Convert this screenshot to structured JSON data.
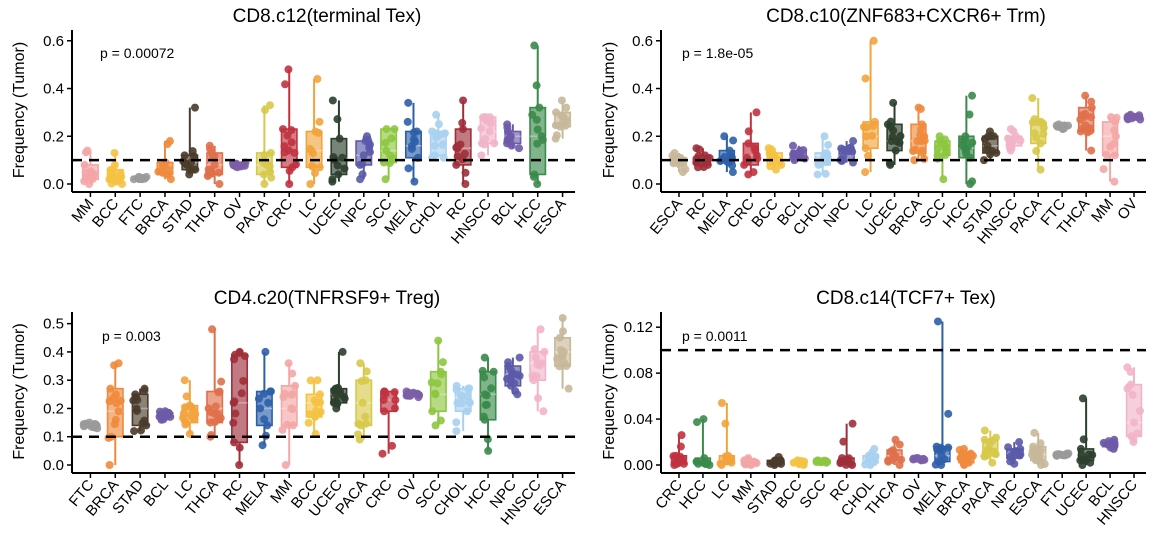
{
  "chart_data": [
    {
      "type": "box",
      "title": "CD8.c12(terminal Tex)",
      "ylabel": "Frequency (Tumor)",
      "ylim": [
        0,
        0.62
      ],
      "yticks": [
        "0.0",
        "0.2",
        "0.4",
        "0.6"
      ],
      "threshold": 0.1,
      "pvalue": "p = 0.00072",
      "categories": [
        "MM",
        "BCC",
        "FTC",
        "BRCA",
        "STAD",
        "THCA",
        "OV",
        "PACA",
        "CRC",
        "LC",
        "UCEC",
        "NPC",
        "SCC",
        "MELA",
        "CHOL",
        "RC",
        "HNSCC",
        "BCL",
        "HCC",
        "ESCA"
      ],
      "colors": [
        "#f4a6a6",
        "#f5c242",
        "#9a9a9a",
        "#ef8a3c",
        "#4a3b2a",
        "#e0704a",
        "#7b5ea7",
        "#d7c94a",
        "#c0323f",
        "#f2a33c",
        "#2c3e2c",
        "#5a5aa8",
        "#8dc63f",
        "#2d5fa8",
        "#a8d0ef",
        "#9e2f3a",
        "#f2b4c8",
        "#6d5aa8",
        "#3a8a4a",
        "#c8b89a"
      ],
      "values": [
        [
          0.0,
          0.02,
          0.04,
          0.08,
          0.14
        ],
        [
          0.0,
          0.01,
          0.03,
          0.06,
          0.13
        ],
        [
          0.02,
          0.02,
          0.025,
          0.03,
          0.03
        ],
        [
          0.02,
          0.04,
          0.06,
          0.09,
          0.18
        ],
        [
          0.04,
          0.06,
          0.09,
          0.12,
          0.32
        ],
        [
          0.0,
          0.04,
          0.08,
          0.13,
          0.16
        ],
        [
          0.07,
          0.075,
          0.08,
          0.085,
          0.09
        ],
        [
          0.0,
          0.04,
          0.08,
          0.13,
          0.33
        ],
        [
          0.0,
          0.07,
          0.13,
          0.23,
          0.48
        ],
        [
          0.0,
          0.07,
          0.14,
          0.22,
          0.44
        ],
        [
          0.01,
          0.04,
          0.11,
          0.19,
          0.35
        ],
        [
          0.02,
          0.08,
          0.12,
          0.18,
          0.2
        ],
        [
          0.02,
          0.09,
          0.14,
          0.23,
          0.23
        ],
        [
          0.01,
          0.11,
          0.16,
          0.22,
          0.34
        ],
        [
          0.11,
          0.12,
          0.16,
          0.22,
          0.29
        ],
        [
          0.0,
          0.08,
          0.15,
          0.23,
          0.35
        ],
        [
          0.12,
          0.17,
          0.22,
          0.28,
          0.28
        ],
        [
          0.15,
          0.17,
          0.2,
          0.22,
          0.25
        ],
        [
          0.0,
          0.04,
          0.2,
          0.32,
          0.58
        ],
        [
          0.19,
          0.24,
          0.26,
          0.3,
          0.35
        ]
      ]
    },
    {
      "type": "box",
      "title": "CD8.c10(ZNF683+CXCR6+ Trm)",
      "ylabel": "Frequency (Tumor)",
      "ylim": [
        0,
        0.62
      ],
      "yticks": [
        "0.0",
        "0.2",
        "0.4",
        "0.6"
      ],
      "threshold": 0.1,
      "pvalue": "p = 1.8e-05",
      "categories": [
        "ESCA",
        "RC",
        "MELA",
        "CRC",
        "BCC",
        "BCL",
        "CHOL",
        "NPC",
        "LC",
        "UCEC",
        "BRCA",
        "SCC",
        "HCC",
        "STAD",
        "HNSCC",
        "PACA",
        "FTC",
        "THCA",
        "MM",
        "OV"
      ],
      "colors": [
        "#c8b89a",
        "#9e2f3a",
        "#2d5fa8",
        "#c0323f",
        "#f5c242",
        "#6d5aa8",
        "#a8d0ef",
        "#5a5aa8",
        "#f2a33c",
        "#2c3e2c",
        "#ef8a3c",
        "#8dc63f",
        "#3a8a4a",
        "#4a3b2a",
        "#f2b4c8",
        "#d7c94a",
        "#9a9a9a",
        "#e0704a",
        "#f4a6a6",
        "#7b5ea7"
      ],
      "values": [
        [
          0.05,
          0.08,
          0.09,
          0.11,
          0.13
        ],
        [
          0.07,
          0.08,
          0.1,
          0.12,
          0.15
        ],
        [
          0.05,
          0.09,
          0.11,
          0.14,
          0.2
        ],
        [
          0.04,
          0.08,
          0.12,
          0.17,
          0.3
        ],
        [
          0.06,
          0.08,
          0.1,
          0.13,
          0.15
        ],
        [
          0.1,
          0.11,
          0.12,
          0.14,
          0.16
        ],
        [
          0.04,
          0.08,
          0.12,
          0.13,
          0.2
        ],
        [
          0.09,
          0.1,
          0.12,
          0.15,
          0.18
        ],
        [
          0.05,
          0.15,
          0.2,
          0.26,
          0.6
        ],
        [
          0.08,
          0.14,
          0.18,
          0.25,
          0.34
        ],
        [
          0.1,
          0.13,
          0.18,
          0.25,
          0.32
        ],
        [
          0.02,
          0.12,
          0.15,
          0.18,
          0.2
        ],
        [
          0.0,
          0.11,
          0.15,
          0.2,
          0.37
        ],
        [
          0.1,
          0.13,
          0.16,
          0.2,
          0.22
        ],
        [
          0.14,
          0.16,
          0.18,
          0.2,
          0.23
        ],
        [
          0.06,
          0.17,
          0.21,
          0.26,
          0.36
        ],
        [
          0.23,
          0.235,
          0.24,
          0.245,
          0.25
        ],
        [
          0.14,
          0.22,
          0.27,
          0.32,
          0.37
        ],
        [
          0.01,
          0.12,
          0.2,
          0.26,
          0.28
        ],
        [
          0.27,
          0.275,
          0.28,
          0.285,
          0.29
        ]
      ]
    },
    {
      "type": "box",
      "title": "CD4.c20(TNFRSF9+ Treg)",
      "ylabel": "Frequency (Tumor)",
      "ylim": [
        0,
        0.52
      ],
      "yticks": [
        "0.0",
        "0.1",
        "0.2",
        "0.3",
        "0.4",
        "0.5"
      ],
      "threshold": 0.1,
      "pvalue": "p = 0.003",
      "categories": [
        "FTC",
        "BRCA",
        "STAD",
        "BCL",
        "LC",
        "THCA",
        "RC",
        "MELA",
        "MM",
        "BCC",
        "UCEC",
        "PACA",
        "CRC",
        "OV",
        "SCC",
        "CHOL",
        "HCC",
        "NPC",
        "HNSCC",
        "ESCA"
      ],
      "colors": [
        "#9a9a9a",
        "#ef8a3c",
        "#4a3b2a",
        "#6d5aa8",
        "#f2a33c",
        "#e0704a",
        "#9e2f3a",
        "#2d5fa8",
        "#f4a6a6",
        "#f5c242",
        "#2c3e2c",
        "#d7c94a",
        "#c0323f",
        "#7b5ea7",
        "#8dc63f",
        "#a8d0ef",
        "#3a8a4a",
        "#5a5aa8",
        "#f2b4c8",
        "#c8b89a"
      ],
      "values": [
        [
          0.13,
          0.135,
          0.14,
          0.145,
          0.15
        ],
        [
          0.0,
          0.1,
          0.19,
          0.27,
          0.36
        ],
        [
          0.12,
          0.14,
          0.2,
          0.25,
          0.27
        ],
        [
          0.16,
          0.17,
          0.18,
          0.185,
          0.19
        ],
        [
          0.11,
          0.15,
          0.18,
          0.21,
          0.3
        ],
        [
          0.1,
          0.15,
          0.2,
          0.26,
          0.48
        ],
        [
          0.0,
          0.08,
          0.22,
          0.39,
          0.4
        ],
        [
          0.07,
          0.14,
          0.2,
          0.26,
          0.4
        ],
        [
          0.0,
          0.14,
          0.2,
          0.28,
          0.36
        ],
        [
          0.11,
          0.17,
          0.22,
          0.25,
          0.3
        ],
        [
          0.2,
          0.22,
          0.25,
          0.27,
          0.4
        ],
        [
          0.09,
          0.14,
          0.22,
          0.3,
          0.36
        ],
        [
          0.04,
          0.19,
          0.23,
          0.26,
          0.26
        ],
        [
          0.24,
          0.245,
          0.25,
          0.255,
          0.26
        ],
        [
          0.14,
          0.19,
          0.25,
          0.33,
          0.44
        ],
        [
          0.12,
          0.19,
          0.24,
          0.27,
          0.28
        ],
        [
          0.05,
          0.16,
          0.25,
          0.33,
          0.38
        ],
        [
          0.25,
          0.28,
          0.32,
          0.35,
          0.38
        ],
        [
          0.19,
          0.3,
          0.36,
          0.4,
          0.48
        ],
        [
          0.27,
          0.35,
          0.4,
          0.45,
          0.52
        ]
      ]
    },
    {
      "type": "box",
      "title": "CD8.c14(TCF7+ Tex)",
      "ylabel": "Frequency (Tumor)",
      "ylim": [
        0,
        0.128
      ],
      "yticks": [
        "0.00",
        "0.04",
        "0.08",
        "0.12"
      ],
      "threshold": 0.1,
      "pvalue": "p = 0.0011",
      "categories": [
        "CRC",
        "HCC",
        "LC",
        "MM",
        "STAD",
        "BCC",
        "SCC",
        "RC",
        "CHOL",
        "THCA",
        "OV",
        "MELA",
        "BRCA",
        "PACA",
        "NPC",
        "ESCA",
        "FTC",
        "UCEC",
        "BCL",
        "HNSCC"
      ],
      "colors": [
        "#c0323f",
        "#3a8a4a",
        "#f2a33c",
        "#f4a6a6",
        "#4a3b2a",
        "#f5c242",
        "#8dc63f",
        "#9e2f3a",
        "#a8d0ef",
        "#e0704a",
        "#7b5ea7",
        "#2d5fa8",
        "#ef8a3c",
        "#d7c94a",
        "#5a5aa8",
        "#c8b89a",
        "#9a9a9a",
        "#2c3e2c",
        "#6d5aa8",
        "#f2b4c8"
      ],
      "values": [
        [
          0.0,
          0.001,
          0.004,
          0.008,
          0.026
        ],
        [
          0.0,
          0.001,
          0.003,
          0.006,
          0.04
        ],
        [
          0.0,
          0.002,
          0.004,
          0.008,
          0.054
        ],
        [
          0.0,
          0.001,
          0.002,
          0.004,
          0.006
        ],
        [
          0.0,
          0.001,
          0.002,
          0.004,
          0.007
        ],
        [
          0.0,
          0.001,
          0.002,
          0.003,
          0.004
        ],
        [
          0.002,
          0.0025,
          0.003,
          0.0035,
          0.004
        ],
        [
          0.0,
          0.001,
          0.003,
          0.006,
          0.036
        ],
        [
          0.0,
          0.002,
          0.004,
          0.008,
          0.014
        ],
        [
          0.0,
          0.004,
          0.008,
          0.013,
          0.022
        ],
        [
          0.004,
          0.0045,
          0.005,
          0.0055,
          0.006
        ],
        [
          0.0,
          0.003,
          0.008,
          0.016,
          0.125
        ],
        [
          0.0,
          0.002,
          0.006,
          0.01,
          0.014
        ],
        [
          0.002,
          0.008,
          0.013,
          0.022,
          0.03
        ],
        [
          0.001,
          0.006,
          0.01,
          0.014,
          0.02
        ],
        [
          0.0,
          0.004,
          0.009,
          0.016,
          0.028
        ],
        [
          0.008,
          0.0085,
          0.009,
          0.0095,
          0.01
        ],
        [
          0.0,
          0.004,
          0.009,
          0.014,
          0.058
        ],
        [
          0.014,
          0.016,
          0.018,
          0.02,
          0.022
        ],
        [
          0.02,
          0.025,
          0.037,
          0.07,
          0.085
        ]
      ]
    }
  ]
}
